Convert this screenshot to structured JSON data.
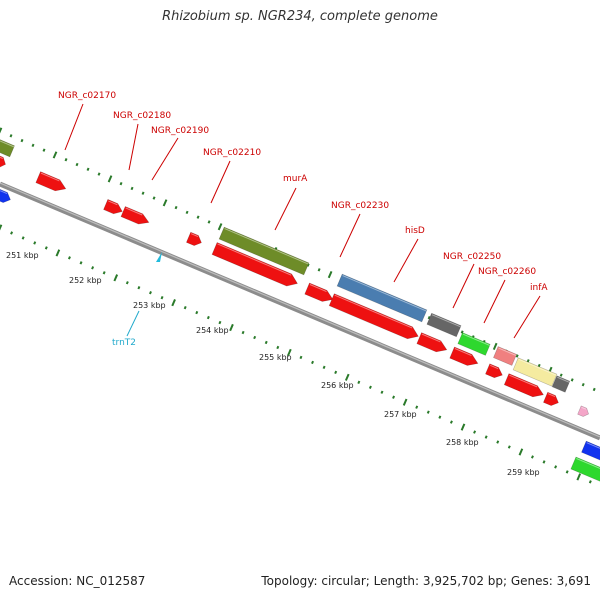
{
  "title": "Rhizobium sp. NGR234, complete genome",
  "accession": "Accession: NC_012587",
  "topology": "Topology: circular; Length: 3,925,702 bp; Genes: 3,691",
  "colors": {
    "backbone": "#8c8c8c",
    "cds": "#ee1111",
    "gene": "#6e8c28",
    "misc_blue": "#4a7db0",
    "misc_grey": "#666666",
    "misc_green": "#2ed82e",
    "misc_pink": "#f08080",
    "misc_yellow": "#f5eba0",
    "blue_edge": "#1133ee",
    "trna": "#22bbdd",
    "ticks": "#2a7a2a",
    "label_red": "#cc0000",
    "label_cyan": "#22aacc"
  },
  "scale_ticks": [
    "251 kbp",
    "252 kbp",
    "253 kbp",
    "254 kbp",
    "255 kbp",
    "256 kbp",
    "257 kbp",
    "258 kbp",
    "259 kbp"
  ],
  "feature_labels": [
    {
      "text": "NGR_c02170",
      "color": "label_red"
    },
    {
      "text": "NGR_c02180",
      "color": "label_red"
    },
    {
      "text": "NGR_c02190",
      "color": "label_red"
    },
    {
      "text": "NGR_c02210",
      "color": "label_red"
    },
    {
      "text": "murA",
      "color": "label_red"
    },
    {
      "text": "NGR_c02230",
      "color": "label_red"
    },
    {
      "text": "hisD",
      "color": "label_red"
    },
    {
      "text": "NGR_c02250",
      "color": "label_red"
    },
    {
      "text": "NGR_c02260",
      "color": "label_red"
    },
    {
      "text": "infA",
      "color": "label_red"
    },
    {
      "text": "trnT2",
      "color": "label_cyan"
    }
  ]
}
